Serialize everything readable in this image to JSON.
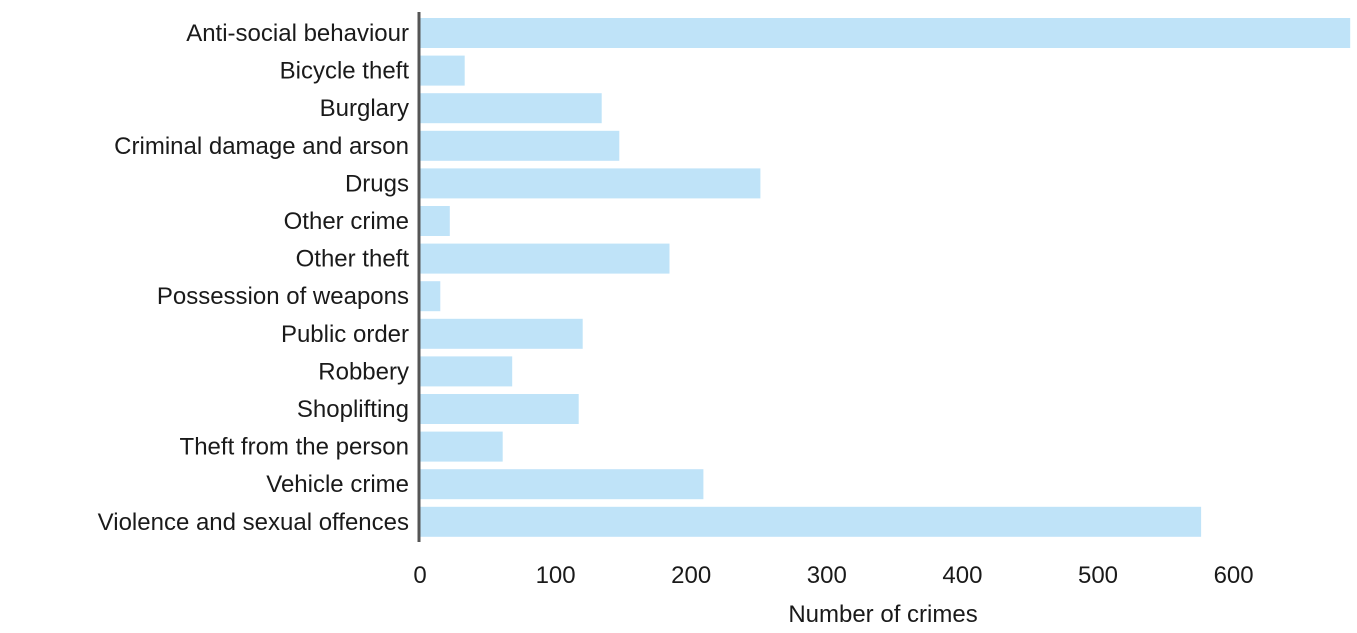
{
  "chart_data": {
    "type": "bar",
    "orientation": "horizontal",
    "categories": [
      "Anti-social behaviour",
      "Bicycle theft",
      "Burglary",
      "Criminal damage and arson",
      "Drugs",
      "Other crime",
      "Other theft",
      "Possession of weapons",
      "Public order",
      "Robbery",
      "Shoplifting",
      "Theft from the person",
      "Vehicle crime",
      "Violence and sexual offences"
    ],
    "values": [
      686,
      33,
      134,
      147,
      251,
      22,
      184,
      15,
      120,
      68,
      117,
      61,
      209,
      576
    ],
    "xlabel": "Number of crimes",
    "ylabel": "",
    "title": "",
    "xlim": [
      0,
      686
    ],
    "xticks": [
      0,
      100,
      200,
      300,
      400,
      500,
      600
    ],
    "grid": false,
    "legend": "none",
    "colors": {
      "bar": "#bfe3f8",
      "axis": "#555555",
      "text": "#1a1a1a"
    }
  }
}
